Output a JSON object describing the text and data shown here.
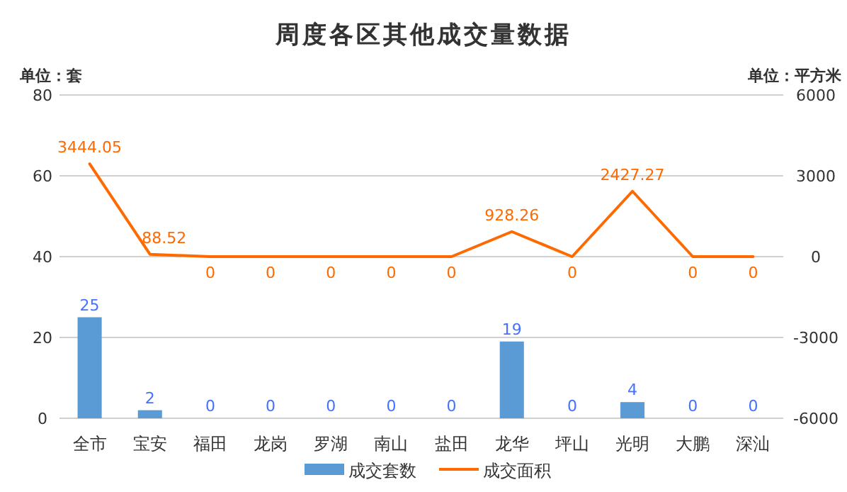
{
  "chart_data": {
    "type": "bar",
    "title": "周度各区其他成交量数据",
    "ylabel": "单位：套",
    "y2label": "单位：平方米",
    "categories": [
      "全市",
      "宝安",
      "福田",
      "龙岗",
      "罗湖",
      "南山",
      "盐田",
      "龙华",
      "坪山",
      "光明",
      "大鹏",
      "深汕"
    ],
    "series": [
      {
        "name": "成交套数",
        "color": "#5b9bd5",
        "values": [
          25,
          2,
          0,
          0,
          0,
          0,
          0,
          19,
          0,
          4,
          0,
          0
        ]
      },
      {
        "name": "成交面积",
        "type": "line",
        "axis": "y2",
        "color": "#ff6a00",
        "values": [
          3444.05,
          88.52,
          0,
          0,
          0,
          0,
          0,
          928.26,
          0,
          2427.27,
          0,
          0
        ]
      }
    ],
    "ylim": [
      0,
      80
    ],
    "yticks": [
      0,
      20,
      40,
      60,
      80
    ],
    "y2lim": [
      -6000,
      6000
    ],
    "y2ticks": [
      -6000,
      -3000,
      0,
      3000,
      6000
    ],
    "grid": "y",
    "legend": "bottom",
    "data_labels": true
  }
}
